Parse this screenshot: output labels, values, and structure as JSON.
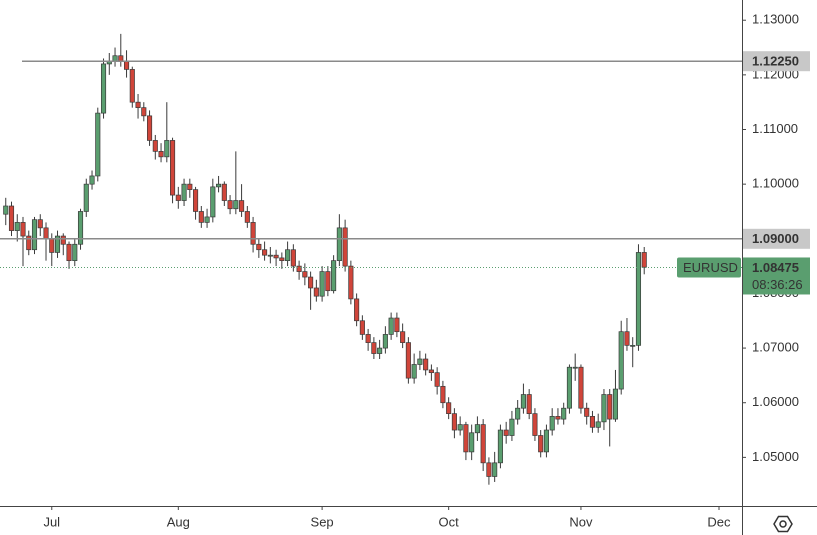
{
  "chart_data": {
    "type": "candlestick",
    "open": [
      1.0945,
      1.096,
      1.0915,
      1.093,
      1.0905,
      1.088,
      1.0935,
      1.092,
      1.09,
      1.0875,
      1.0905,
      1.089,
      1.086,
      1.089,
      1.095,
      1.1,
      1.1015,
      1.113,
      1.122,
      1.1225,
      1.1235,
      1.1225,
      1.121,
      1.115,
      1.114,
      1.1125,
      1.108,
      1.106,
      1.105,
      1.108,
      1.098,
      1.097,
      1.1,
      1.099,
      1.095,
      1.093,
      1.094,
      1.0995,
      1.1,
      1.097,
      1.0955,
      1.097,
      1.095,
      1.093,
      1.089,
      1.088,
      1.087,
      1.087,
      1.0865,
      1.086,
      1.088,
      1.085,
      1.084,
      1.083,
      1.081,
      1.0795,
      1.084,
      1.0805,
      1.086,
      1.092,
      1.085,
      1.079,
      1.075,
      1.0725,
      1.071,
      1.069,
      1.07,
      1.0725,
      1.0755,
      1.073,
      1.071,
      1.0645,
      1.067,
      1.068,
      1.066,
      1.0655,
      1.063,
      1.06,
      1.058,
      1.055,
      1.056,
      1.051,
      1.0545,
      1.056,
      1.049,
      1.0465,
      1.049,
      1.055,
      1.054,
      1.057,
      1.059,
      1.0615,
      1.058,
      1.054,
      1.051,
      1.055,
      1.0575,
      1.057,
      1.059,
      1.0665,
      1.0665,
      1.059,
      1.0575,
      1.0555,
      1.0565,
      1.0615,
      1.057,
      1.0625,
      1.073,
      1.0705,
      1.0705,
      1.0875
    ],
    "high": [
      1.0975,
      1.0968,
      1.0945,
      1.094,
      1.0915,
      1.094,
      1.0945,
      1.093,
      1.091,
      1.0915,
      1.091,
      1.0895,
      1.09,
      1.0955,
      1.101,
      1.1025,
      1.114,
      1.123,
      1.124,
      1.125,
      1.1275,
      1.1245,
      1.1215,
      1.1165,
      1.115,
      1.1135,
      1.109,
      1.1075,
      1.115,
      1.1085,
      1.0995,
      1.101,
      1.101,
      1.0995,
      1.096,
      1.0955,
      1.101,
      1.1015,
      1.1005,
      1.098,
      1.106,
      1.1,
      1.096,
      1.094,
      1.09,
      1.0895,
      1.0885,
      1.088,
      1.0875,
      1.0895,
      1.089,
      1.086,
      1.0855,
      1.084,
      1.0825,
      1.085,
      1.085,
      1.087,
      1.0945,
      1.0935,
      1.086,
      1.08,
      1.076,
      1.0735,
      1.072,
      1.0715,
      1.074,
      1.0765,
      1.0765,
      1.0745,
      1.072,
      1.069,
      1.0695,
      1.069,
      1.067,
      1.0665,
      1.064,
      1.061,
      1.059,
      1.0575,
      1.0565,
      1.056,
      1.0575,
      1.057,
      1.05,
      1.051,
      1.056,
      1.0565,
      1.0585,
      1.0605,
      1.0635,
      1.0625,
      1.059,
      1.055,
      1.056,
      1.059,
      1.059,
      1.06,
      1.067,
      1.069,
      1.067,
      1.06,
      1.0585,
      1.058,
      1.0625,
      1.0625,
      1.066,
      1.075,
      1.0755,
      1.072,
      1.089,
      1.0885
    ],
    "low": [
      1.0925,
      1.0905,
      1.0895,
      1.085,
      1.087,
      1.0872,
      1.0905,
      1.086,
      1.085,
      1.0865,
      1.087,
      1.0845,
      1.085,
      1.088,
      1.094,
      1.099,
      1.1005,
      1.112,
      1.12,
      1.1215,
      1.1215,
      1.1195,
      1.114,
      1.112,
      1.1115,
      1.107,
      1.1045,
      1.104,
      1.104,
      1.0965,
      1.0955,
      1.096,
      1.0975,
      1.0935,
      1.092,
      1.092,
      1.093,
      1.0985,
      1.096,
      1.0945,
      1.0945,
      1.094,
      1.092,
      1.0875,
      1.0865,
      1.086,
      1.0855,
      1.085,
      1.0845,
      1.085,
      1.084,
      1.0825,
      1.0815,
      1.077,
      1.0785,
      1.0785,
      1.0795,
      1.08,
      1.085,
      1.084,
      1.078,
      1.074,
      1.0715,
      1.0695,
      1.068,
      1.068,
      1.069,
      1.0715,
      1.072,
      1.07,
      1.0635,
      1.0635,
      1.066,
      1.065,
      1.064,
      1.0615,
      1.059,
      1.057,
      1.0535,
      1.054,
      1.0495,
      1.0495,
      1.053,
      1.0475,
      1.045,
      1.0455,
      1.048,
      1.0525,
      1.053,
      1.056,
      1.058,
      1.057,
      1.053,
      1.05,
      1.05,
      1.054,
      1.056,
      1.056,
      1.058,
      1.064,
      1.058,
      1.056,
      1.0545,
      1.0545,
      1.055,
      1.052,
      1.0565,
      1.0615,
      1.0695,
      1.0665,
      1.0695,
      1.0835
    ],
    "close": [
      1.096,
      1.0915,
      1.093,
      1.0905,
      1.088,
      1.0935,
      1.092,
      1.09,
      1.0875,
      1.0905,
      1.089,
      1.086,
      1.089,
      1.095,
      1.1,
      1.1015,
      1.113,
      1.122,
      1.1225,
      1.1235,
      1.1225,
      1.121,
      1.115,
      1.114,
      1.1125,
      1.108,
      1.106,
      1.105,
      1.108,
      1.098,
      1.097,
      1.1,
      1.099,
      1.095,
      1.093,
      1.094,
      1.0995,
      1.1,
      1.097,
      1.0955,
      1.097,
      1.095,
      1.093,
      1.089,
      1.088,
      1.087,
      1.087,
      1.0865,
      1.086,
      1.088,
      1.085,
      1.084,
      1.083,
      1.081,
      1.0795,
      1.084,
      1.0805,
      1.086,
      1.092,
      1.085,
      1.079,
      1.075,
      1.0725,
      1.071,
      1.069,
      1.07,
      1.0725,
      1.0755,
      1.073,
      1.071,
      1.0645,
      1.067,
      1.068,
      1.066,
      1.0655,
      1.063,
      1.06,
      1.058,
      1.055,
      1.056,
      1.051,
      1.0545,
      1.056,
      1.049,
      1.0465,
      1.049,
      1.055,
      1.054,
      1.057,
      1.059,
      1.0615,
      1.058,
      1.054,
      1.051,
      1.055,
      1.0575,
      1.057,
      1.059,
      1.0665,
      1.0665,
      1.059,
      1.0575,
      1.0555,
      1.0565,
      1.0615,
      1.057,
      1.0625,
      1.073,
      1.0705,
      1.0705,
      1.0875,
      1.0848
    ],
    "up_color": "#5a9e6f",
    "down_color": "#d0453a",
    "xlim": [
      -1,
      128
    ],
    "xticks": [
      {
        "value": 8,
        "label": "Jul"
      },
      {
        "value": 30,
        "label": "Aug"
      },
      {
        "value": 55,
        "label": "Sep"
      },
      {
        "value": 77,
        "label": "Oct"
      },
      {
        "value": 100,
        "label": "Nov"
      },
      {
        "value": 124,
        "label": "Dec"
      }
    ],
    "ylim": [
      1.0411,
      1.1337
    ],
    "yticks": [
      {
        "value": 1.05,
        "label": "1.05000"
      },
      {
        "value": 1.06,
        "label": "1.06000"
      },
      {
        "value": 1.07,
        "label": "1.07000"
      },
      {
        "value": 1.08,
        "label": "1.08000"
      },
      {
        "value": 1.09,
        "label": "1.09000"
      },
      {
        "value": 1.1,
        "label": "1.10000"
      },
      {
        "value": 1.11,
        "label": "1.11000"
      },
      {
        "value": 1.12,
        "label": "1.12000"
      },
      {
        "value": 1.13,
        "label": "1.13000"
      }
    ],
    "levels": [
      {
        "value": 1.1225,
        "label": "1.12250"
      },
      {
        "value": 1.09,
        "label": "1.09000"
      }
    ],
    "last_price": {
      "symbol": "EURUSD",
      "value": 1.08475,
      "label": "1.08475",
      "countdown": "08:36:26"
    }
  }
}
